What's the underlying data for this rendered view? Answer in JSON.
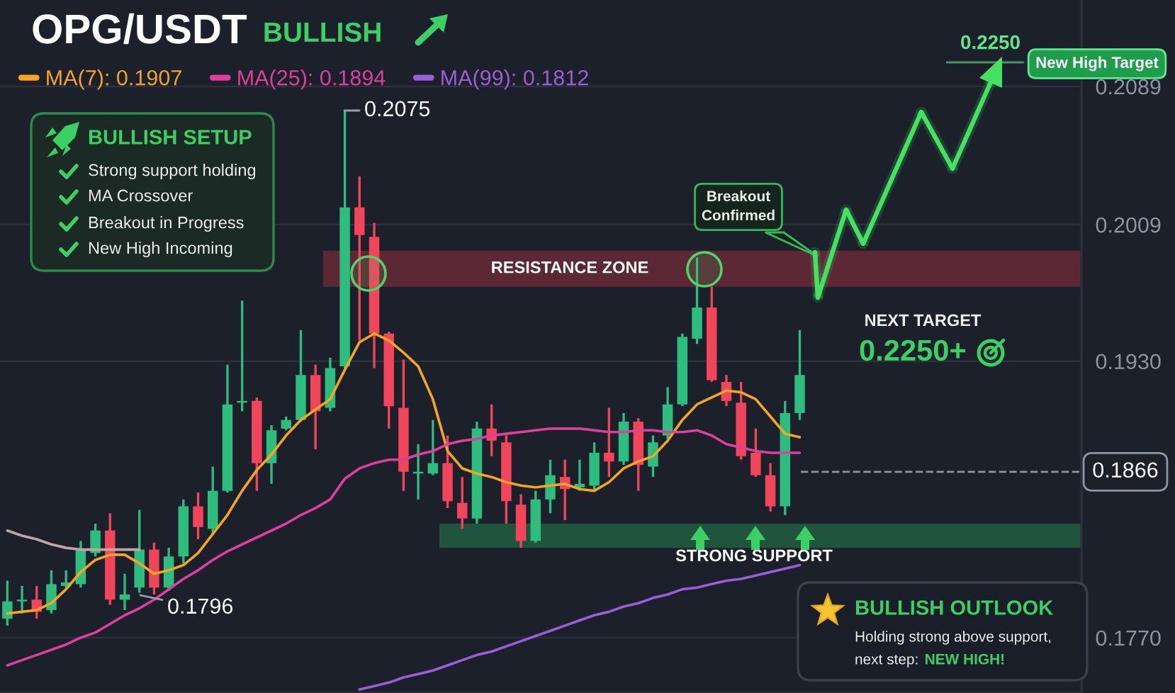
{
  "chart_data": {
    "type": "candlestick",
    "title": "OPG/USDT",
    "subtitle": "BULLISH",
    "categories": [
      null,
      null,
      null,
      null,
      null,
      null,
      null,
      null,
      null,
      null,
      null,
      null,
      null,
      null,
      null,
      null,
      null,
      null,
      null,
      null,
      null,
      null,
      null,
      null,
      null,
      null,
      null,
      null,
      null,
      null,
      null,
      null,
      null,
      null,
      null,
      null,
      null,
      null,
      null,
      null,
      null,
      null,
      null,
      null,
      null,
      null,
      null,
      null,
      null,
      null,
      null,
      null,
      null,
      null,
      null
    ],
    "ohlc": [
      [
        0.1781,
        0.1803,
        0.1777,
        0.1791
      ],
      [
        0.1791,
        0.18,
        0.1784,
        0.1792
      ],
      [
        0.1792,
        0.18,
        0.1781,
        0.1785
      ],
      [
        0.1786,
        0.1809,
        0.1784,
        0.1801
      ],
      [
        0.18,
        0.1809,
        0.1799,
        0.1802
      ],
      [
        0.1801,
        0.1826,
        0.1799,
        0.1821
      ],
      [
        0.1819,
        0.1836,
        0.1817,
        0.1832
      ],
      [
        0.1832,
        0.1842,
        0.1789,
        0.1792
      ],
      [
        0.1792,
        0.1807,
        0.1786,
        0.1795
      ],
      [
        0.1799,
        0.1844,
        0.1796,
        0.1821
      ],
      [
        0.1821,
        0.1825,
        0.1795,
        0.1799
      ],
      [
        0.1799,
        0.1822,
        0.1797,
        0.1817
      ],
      [
        0.1817,
        0.185,
        0.1813,
        0.1846
      ],
      [
        0.1846,
        0.1854,
        0.1827,
        0.1834
      ],
      [
        0.1833,
        0.1869,
        0.183,
        0.1855
      ],
      [
        0.1855,
        0.1928,
        0.1854,
        0.1905
      ],
      [
        0.1906,
        0.1965,
        0.1901,
        0.1907
      ],
      [
        0.1907,
        0.1909,
        0.1855,
        0.1871
      ],
      [
        0.1871,
        0.1893,
        0.1859,
        0.189
      ],
      [
        0.1891,
        0.1898,
        0.189,
        0.1896
      ],
      [
        0.1896,
        0.1948,
        0.1895,
        0.1922
      ],
      [
        0.1922,
        0.1928,
        0.1879,
        0.1901
      ],
      [
        0.1903,
        0.1932,
        0.1901,
        0.1926
      ],
      [
        0.1927,
        0.2075,
        0.1926,
        0.2019
      ],
      [
        0.2019,
        0.2037,
        0.1942,
        0.2003
      ],
      [
        0.2002,
        0.201,
        0.1926,
        0.1946
      ],
      [
        0.1946,
        0.1947,
        0.1891,
        0.1904
      ],
      [
        0.1903,
        0.1931,
        0.1855,
        0.1866
      ],
      [
        0.1865,
        0.1882,
        0.185,
        0.1866
      ],
      [
        0.1865,
        0.1896,
        0.1864,
        0.1871
      ],
      [
        0.1871,
        0.1887,
        0.1845,
        0.1849
      ],
      [
        0.1848,
        0.1863,
        0.1833,
        0.1839
      ],
      [
        0.1839,
        0.1895,
        0.1836,
        0.1891
      ],
      [
        0.1891,
        0.1905,
        0.1875,
        0.1884
      ],
      [
        0.1883,
        0.1887,
        0.1836,
        0.1849
      ],
      [
        0.1847,
        0.1853,
        0.1822,
        0.1826
      ],
      [
        0.1826,
        0.1855,
        0.1825,
        0.185
      ],
      [
        0.185,
        0.1873,
        0.1842,
        0.1864
      ],
      [
        0.1863,
        0.1873,
        0.1838,
        0.1856
      ],
      [
        0.1857,
        0.1873,
        0.1855,
        0.1859
      ],
      [
        0.1858,
        0.1883,
        0.1855,
        0.1877
      ],
      [
        0.1877,
        0.1903,
        0.1863,
        0.1872
      ],
      [
        0.1872,
        0.19,
        0.187,
        0.1895
      ],
      [
        0.1895,
        0.1897,
        0.1855,
        0.187
      ],
      [
        0.1869,
        0.1887,
        0.1863,
        0.1883
      ],
      [
        0.1887,
        0.1915,
        0.1885,
        0.1905
      ],
      [
        0.1905,
        0.1946,
        0.1904,
        0.1944
      ],
      [
        0.1943,
        0.199,
        0.194,
        0.1961
      ],
      [
        0.1961,
        0.1973,
        0.1918,
        0.1919
      ],
      [
        0.1918,
        0.1922,
        0.1904,
        0.1907
      ],
      [
        0.1906,
        0.1918,
        0.1873,
        0.1875
      ],
      [
        0.1877,
        0.1891,
        0.1863,
        0.1864
      ],
      [
        0.1864,
        0.1871,
        0.1843,
        0.1846
      ],
      [
        0.1846,
        0.1907,
        0.1841,
        0.19
      ],
      [
        0.19,
        0.1948,
        0.1896,
        0.1922
      ]
    ],
    "colors": [
      "#2ebd7f",
      "#2ebd7f",
      "#f0455a",
      "#2ebd7f",
      "#2ebd7f",
      "#2ebd7f",
      "#2ebd7f",
      "#f0455a",
      "#2ebd7f",
      "#2ebd7f",
      "#f0455a",
      "#2ebd7f",
      "#2ebd7f",
      "#f0455a",
      "#2ebd7f",
      "#2ebd7f",
      "#2ebd7f",
      "#f0455a",
      "#2ebd7f",
      "#2ebd7f",
      "#2ebd7f",
      "#f0455a",
      "#2ebd7f",
      "#2ebd7f",
      "#f0455a",
      "#f0455a",
      "#f0455a",
      "#f0455a",
      "#2ebd7f",
      "#2ebd7f",
      "#f0455a",
      "#f0455a",
      "#2ebd7f",
      "#f0455a",
      "#f0455a",
      "#f0455a",
      "#2ebd7f",
      "#2ebd7f",
      "#f0455a",
      "#2ebd7f",
      "#2ebd7f",
      "#f0455a",
      "#2ebd7f",
      "#f0455a",
      "#2ebd7f",
      "#2ebd7f",
      "#2ebd7f",
      "#2ebd7f",
      "#f0455a",
      "#f0455a",
      "#f0455a",
      "#f0455a",
      "#f0455a",
      "#2ebd7f",
      "#2ebd7f"
    ],
    "series": [
      {
        "name": "MA(7): 0.1907",
        "type": "line",
        "color": "#f5a524",
        "values": [
          0.1784,
          0.1785,
          0.1786,
          0.179,
          0.1798,
          0.1808,
          0.1815,
          0.1818,
          0.1818,
          0.1813,
          0.1807,
          0.1809,
          0.1812,
          0.1819,
          0.183,
          0.1841,
          0.1855,
          0.1867,
          0.1876,
          0.1887,
          0.1896,
          0.1902,
          0.1908,
          0.1925,
          0.1941,
          0.1946,
          0.1942,
          0.1935,
          0.1927,
          0.1908,
          0.1878,
          0.1868,
          0.1865,
          0.1863,
          0.186,
          0.1858,
          0.1857,
          0.1858,
          0.1859,
          0.1856,
          0.1855,
          0.186,
          0.1868,
          0.1872,
          0.1875,
          0.1884,
          0.1896,
          0.1905,
          0.1909,
          0.1913,
          0.1912,
          0.1908,
          0.1898,
          0.1888,
          0.1886
        ]
      },
      {
        "name": "MA(25): 0.1894",
        "type": "line",
        "color": "#dd3f9f",
        "values": [
          0.1754,
          0.1757,
          0.176,
          0.1763,
          0.1766,
          0.177,
          0.1773,
          0.1778,
          0.1783,
          0.1787,
          0.1792,
          0.1798,
          0.1804,
          0.1809,
          0.1815,
          0.182,
          0.1824,
          0.1828,
          0.1832,
          0.1836,
          0.1841,
          0.1845,
          0.185,
          0.1862,
          0.1868,
          0.1871,
          0.1873,
          0.1873,
          0.1876,
          0.1878,
          0.1882,
          0.1884,
          0.1885,
          0.1887,
          0.1888,
          0.1889,
          0.189,
          0.1891,
          0.1891,
          0.1891,
          0.189,
          0.1889,
          0.1889,
          0.189,
          0.189,
          0.1889,
          0.1889,
          0.189,
          0.1887,
          0.1882,
          0.188,
          0.1878,
          0.1877,
          0.1877,
          0.1877
        ]
      },
      {
        "name": "MA(99): 0.1812",
        "type": "line",
        "color": "#9a5fd6",
        "values": [
          null,
          null,
          null,
          null,
          null,
          null,
          null,
          null,
          null,
          null,
          null,
          null,
          null,
          null,
          null,
          null,
          null,
          null,
          null,
          null,
          null,
          null,
          null,
          null,
          0.174,
          0.1742,
          0.1744,
          0.1747,
          0.1749,
          0.1751,
          0.1754,
          0.1757,
          0.176,
          0.1762,
          0.1765,
          0.1768,
          0.1771,
          0.1774,
          0.1777,
          0.178,
          0.1783,
          0.1785,
          0.1788,
          0.179,
          0.1793,
          0.1795,
          0.1798,
          0.1799,
          0.1801,
          0.1803,
          0.1804,
          0.1806,
          0.1808,
          0.181,
          0.1812
        ]
      },
      {
        "type": "line",
        "color": "#c4a5a5",
        "values": [
          0.1832,
          0.1829,
          0.1827,
          0.1824,
          0.1822,
          0.1821,
          0.1821,
          0.1821,
          0.1821,
          0.1821,
          null,
          null,
          null,
          null,
          null,
          null,
          null,
          null,
          null,
          null,
          null,
          null,
          null,
          null,
          null,
          null,
          null,
          null,
          null,
          null,
          null,
          null,
          null,
          null,
          null,
          null,
          null,
          null,
          null,
          null,
          null,
          null,
          null,
          null,
          null,
          null,
          null,
          null,
          null,
          null,
          null,
          null,
          null,
          null,
          null
        ]
      }
    ],
    "ylim": [
      0.1738,
      0.2139
    ],
    "yticks": [
      {
        "value": 0.177,
        "label": "0.1770"
      },
      {
        "value": 0.193,
        "label": "0.1930"
      },
      0.2009,
      0.2089
    ],
    "tick_labels": "y",
    "grid": "y",
    "legend": "top left",
    "ref_lines": [
      {
        "axis": "y",
        "value": 0.1866,
        "label": "0.1866",
        "color": "#8e95a2",
        "line_style": "dashed"
      }
    ],
    "bands": [
      {
        "axis": "y",
        "from": 0.1973,
        "to": 0.1994,
        "label": "RESISTANCE ZONE",
        "color": "#e0394f"
      },
      {
        "axis": "y",
        "from": 0.1822,
        "to": 0.1836,
        "label": "STRONG SUPPORT",
        "color": "#2fbf62"
      }
    ],
    "annotations": [
      "BULLISH SETUP",
      "Strong support holding",
      "MA Crossover",
      "Breakout in Progress",
      "New High Incoming",
      "0.2075",
      "0.1796",
      "Breakout\nConfirmed",
      "0.2250",
      "New High Target",
      "NEXT TARGET",
      "0.2250+",
      "BULLISH OUTLOOK",
      "Holding strong above support,",
      "next step:",
      "NEW HIGH!"
    ]
  }
}
